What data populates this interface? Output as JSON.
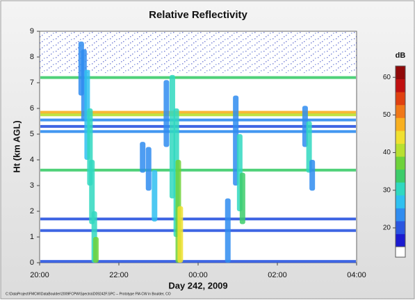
{
  "chart_data": {
    "type": "heatmap",
    "title": "Relative Reflectivity",
    "xlabel": "Day 242, 2009",
    "ylabel": "Ht (km AGL)",
    "footer": "C:\\DataProject\\FMCW\\DataBoulder\\2009FCPW\\Spectra\\D09242F.SPC  --  Prototype FM-CW in Boulder, CO",
    "xlim": [
      0,
      8
    ],
    "xticks": [
      {
        "value": 0,
        "label": "20:00"
      },
      {
        "value": 2,
        "label": "22:00"
      },
      {
        "value": 4,
        "label": "00:00"
      },
      {
        "value": 6,
        "label": "02:00"
      },
      {
        "value": 8,
        "label": "04:00"
      }
    ],
    "ylim": [
      0,
      9
    ],
    "yticks": [
      0,
      1,
      2,
      3,
      4,
      5,
      6,
      7,
      8,
      9
    ],
    "colorbar_label": "dB",
    "clim": [
      15,
      63
    ],
    "cticks": [
      20,
      30,
      40,
      50,
      60
    ],
    "colormap": [
      "#1a1ad0",
      "#2a55e0",
      "#2f8cf0",
      "#2fc0f0",
      "#30d8c0",
      "#3ccc6a",
      "#6ed23a",
      "#b8e030",
      "#f0e030",
      "#f8b020",
      "#f07818",
      "#e04010",
      "#c01010",
      "#900808"
    ],
    "layers": {
      "heights": [
        7.2,
        5.85,
        5.75,
        5.55,
        5.3,
        5.1,
        3.6,
        1.7,
        1.25,
        0.05
      ],
      "values": [
        35,
        48,
        40,
        25,
        20,
        22,
        33,
        20,
        20,
        20
      ]
    },
    "streaks": {
      "x": [
        1.05,
        1.12,
        1.2,
        1.27,
        1.32,
        1.38,
        1.42,
        2.6,
        2.75,
        2.9,
        3.2,
        3.35,
        3.45,
        3.5,
        3.55,
        4.75,
        4.95,
        5.05,
        5.12,
        6.7,
        6.8,
        6.88
      ],
      "bottom": [
        6.5,
        5.5,
        4.0,
        3.0,
        1.5,
        0,
        0,
        3.5,
        2.8,
        1.6,
        4.5,
        2.5,
        1.0,
        0,
        0,
        0,
        3.0,
        2.0,
        1.5,
        4.5,
        3.5,
        2.8
      ],
      "top": [
        8.6,
        8.3,
        7.5,
        6.0,
        4.0,
        2.0,
        1.0,
        4.7,
        4.5,
        3.6,
        7.1,
        7.3,
        6.0,
        4.0,
        2.2,
        2.5,
        6.5,
        5.0,
        3.5,
        6.1,
        5.5,
        4.0
      ],
      "values": [
        22,
        25,
        28,
        30,
        30,
        32,
        38,
        22,
        25,
        28,
        25,
        30,
        32,
        36,
        44,
        25,
        22,
        30,
        35,
        22,
        30,
        25
      ]
    }
  }
}
